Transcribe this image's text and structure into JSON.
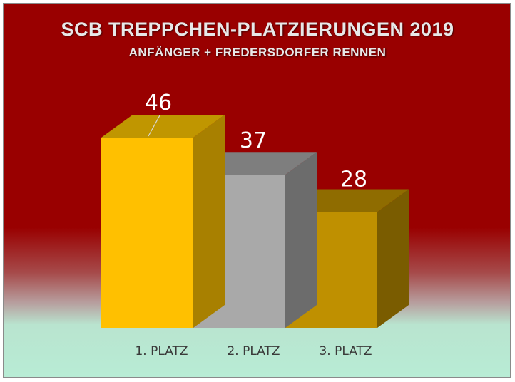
{
  "chart_data": {
    "type": "bar",
    "title": "SCB TREPPCHEN-PLATZIERUNGEN 2019",
    "subtitle": "ANFÄNGER + FREDERSDORFER RENNEN",
    "categories": [
      "1. PLATZ",
      "2. PLATZ",
      "3. PLATZ"
    ],
    "values": [
      46,
      37,
      28
    ],
    "xlabel": "",
    "ylabel": "",
    "grid": false,
    "legend": "none",
    "style": "3d-column",
    "colors": [
      {
        "front": "#ffc000",
        "top": "#c09600",
        "side": "#a88000"
      },
      {
        "front": "#a9a9a9",
        "top": "#7e7e7e",
        "side": "#6c6c6c"
      },
      {
        "front": "#bf9000",
        "top": "#8f6c00",
        "side": "#7a5c00"
      }
    ]
  }
}
